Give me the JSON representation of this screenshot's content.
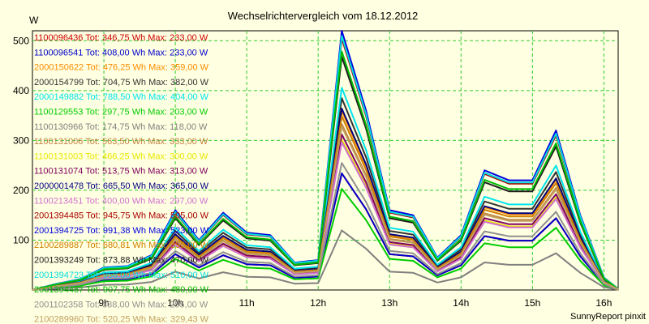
{
  "chart_data": {
    "type": "line",
    "title": "Wechselrichtervergleich vom 18.12.2012",
    "ylabel": "W",
    "xlabel": "",
    "ylim": [
      0,
      520
    ],
    "xlim": [
      8.0,
      16.2
    ],
    "grid": true,
    "legend_placement": "top-left",
    "footer": "SunnyReport pinxit",
    "x_ticks": [
      {
        "value": 9,
        "label": "9h"
      },
      {
        "value": 10,
        "label": "10h"
      },
      {
        "value": 11,
        "label": "11h"
      },
      {
        "value": 12,
        "label": "12h"
      },
      {
        "value": 13,
        "label": "13h"
      },
      {
        "value": 14,
        "label": "14h"
      },
      {
        "value": 15,
        "label": "15h"
      },
      {
        "value": 16,
        "label": "16h"
      }
    ],
    "y_ticks": [
      {
        "value": 100,
        "label": "100"
      },
      {
        "value": 200,
        "label": "200"
      },
      {
        "value": 300,
        "label": "300"
      },
      {
        "value": 400,
        "label": "400"
      },
      {
        "value": 500,
        "label": "500"
      }
    ],
    "x": [
      8.0,
      8.33,
      8.67,
      9.0,
      9.33,
      9.67,
      10.0,
      10.33,
      10.67,
      11.0,
      11.33,
      11.67,
      12.0,
      12.33,
      12.67,
      13.0,
      13.33,
      13.67,
      14.0,
      14.33,
      14.67,
      15.0,
      15.33,
      15.67,
      16.0,
      16.2
    ],
    "series": [
      {
        "name": "1100096436 Tot: 346,75 Wh Max: 233,00 W",
        "color": "#cc0000",
        "scale": 0.45
      },
      {
        "name": "1100096541 Tot: 408,00 Wh Max: 233,00 W",
        "color": "#0000cc",
        "scale": 0.45
      },
      {
        "name": "2000150622 Tot: 476,25 Wh Max: 359,00 W",
        "color": "#ff8c00",
        "scale": 0.69
      },
      {
        "name": "2000154799 Tot: 704,75 Wh Max: 382,00 W",
        "color": "#333333",
        "scale": 0.74
      },
      {
        "name": "2000149882 Tot: 788,50 Wh Max: 404,00 W",
        "color": "#00e5ee",
        "scale": 0.78
      },
      {
        "name": "1100129553 Tot: 297,75 Wh Max: 203,00 W",
        "color": "#00cc00",
        "scale": 0.39
      },
      {
        "name": "1100130966 Tot: 174,75 Wh Max: 118,00 W",
        "color": "#808080",
        "scale": 0.23
      },
      {
        "name": "1100131006 Tot: 563,50 Wh Max: 333,00 W",
        "color": "#c08040",
        "scale": 0.64
      },
      {
        "name": "1100131003 Tot: 466,25 Wh Max: 300,00 W",
        "color": "#e8e800",
        "scale": 0.58
      },
      {
        "name": "1100131074 Tot: 513,75 Wh Max: 313,00 W",
        "color": "#800060",
        "scale": 0.6
      },
      {
        "name": "2000001478 Tot: 665,50 Wh Max: 365,00 W",
        "color": "#000080",
        "scale": 0.7
      },
      {
        "name": "1100213451 Tot: 400,00 Wh Max: 297,00 W",
        "color": "#d070d0",
        "scale": 0.57
      },
      {
        "name": "2001394485 Tot: 945,75 Wh Max: 505,00 W",
        "color": "#aa0000",
        "scale": 0.97
      },
      {
        "name": "2001394725 Tot: 991,38 Wh Max: 523,00 W",
        "color": "#0000dd",
        "scale": 1.0
      },
      {
        "name": "2100289887 Tot: 680,81 Wh Max: 350,00 W",
        "color": "#d08000",
        "scale": 0.67
      },
      {
        "name": "2001393249 Tot: 873,88 Wh Max: 470,00 W",
        "color": "#202020",
        "scale": 0.9
      },
      {
        "name": "2001394723 Tot: 958,00 Wh Max: 510,00 W",
        "color": "#00dddd",
        "scale": 0.98
      },
      {
        "name": "2001394487 Tot: 907,75 Wh Max: 480,00 W",
        "color": "#00bb00",
        "scale": 0.92
      },
      {
        "name": "2001102358 Tot: 388,00 Wh Max: 255,00 W",
        "color": "#909090",
        "scale": 0.49
      },
      {
        "name": "2100289960 Tot: 520,25 Wh Max: 329,43 W",
        "color": "#c0a060",
        "scale": 0.63
      }
    ],
    "base_profile": [
      0,
      12,
      22,
      45,
      48,
      70,
      160,
      100,
      155,
      115,
      110,
      55,
      60,
      520,
      360,
      160,
      150,
      65,
      110,
      240,
      220,
      220,
      320,
      150,
      25,
      2
    ]
  }
}
